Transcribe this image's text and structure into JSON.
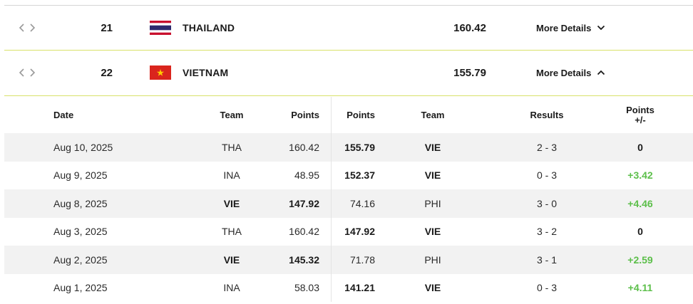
{
  "rankings": [
    {
      "rank": "21",
      "country": "THAILAND",
      "points": "160.42",
      "details_label": "More Details",
      "flag": "thailand-flag",
      "expanded": false
    },
    {
      "rank": "22",
      "country": "VIETNAM",
      "points": "155.79",
      "details_label": "More Details",
      "flag": "vietnam-flag",
      "expanded": true
    }
  ],
  "details": {
    "headers": {
      "date": "Date",
      "team1": "Team",
      "points1": "Points",
      "points2": "Points",
      "team2": "Team",
      "results": "Results",
      "diff": "Points +/-"
    },
    "rows": [
      {
        "date": "Aug 10, 2025",
        "team1": "THA",
        "points1": "160.42",
        "points2": "155.79",
        "team2": "VIE",
        "result": "2 - 3",
        "diff": "0"
      },
      {
        "date": "Aug 9, 2025",
        "team1": "INA",
        "points1": "48.95",
        "points2": "152.37",
        "team2": "VIE",
        "result": "0 - 3",
        "diff": "+3.42"
      },
      {
        "date": "Aug 8, 2025",
        "team1": "VIE",
        "points1": "147.92",
        "points2": "74.16",
        "team2": "PHI",
        "result": "3 - 0",
        "diff": "+4.46"
      },
      {
        "date": "Aug 3, 2025",
        "team1": "THA",
        "points1": "160.42",
        "points2": "147.92",
        "team2": "VIE",
        "result": "3 - 2",
        "diff": "0"
      },
      {
        "date": "Aug 2, 2025",
        "team1": "VIE",
        "points1": "145.32",
        "points2": "71.78",
        "team2": "PHI",
        "result": "3 - 1",
        "diff": "+2.59"
      },
      {
        "date": "Aug 1, 2025",
        "team1": "INA",
        "points1": "58.03",
        "points2": "141.21",
        "team2": "VIE",
        "result": "0 - 3",
        "diff": "+4.11"
      }
    ]
  },
  "colors": {
    "accent_line": "#d8e26a",
    "positive": "#5cbf4a",
    "row_shade": "#f2f2f2"
  }
}
